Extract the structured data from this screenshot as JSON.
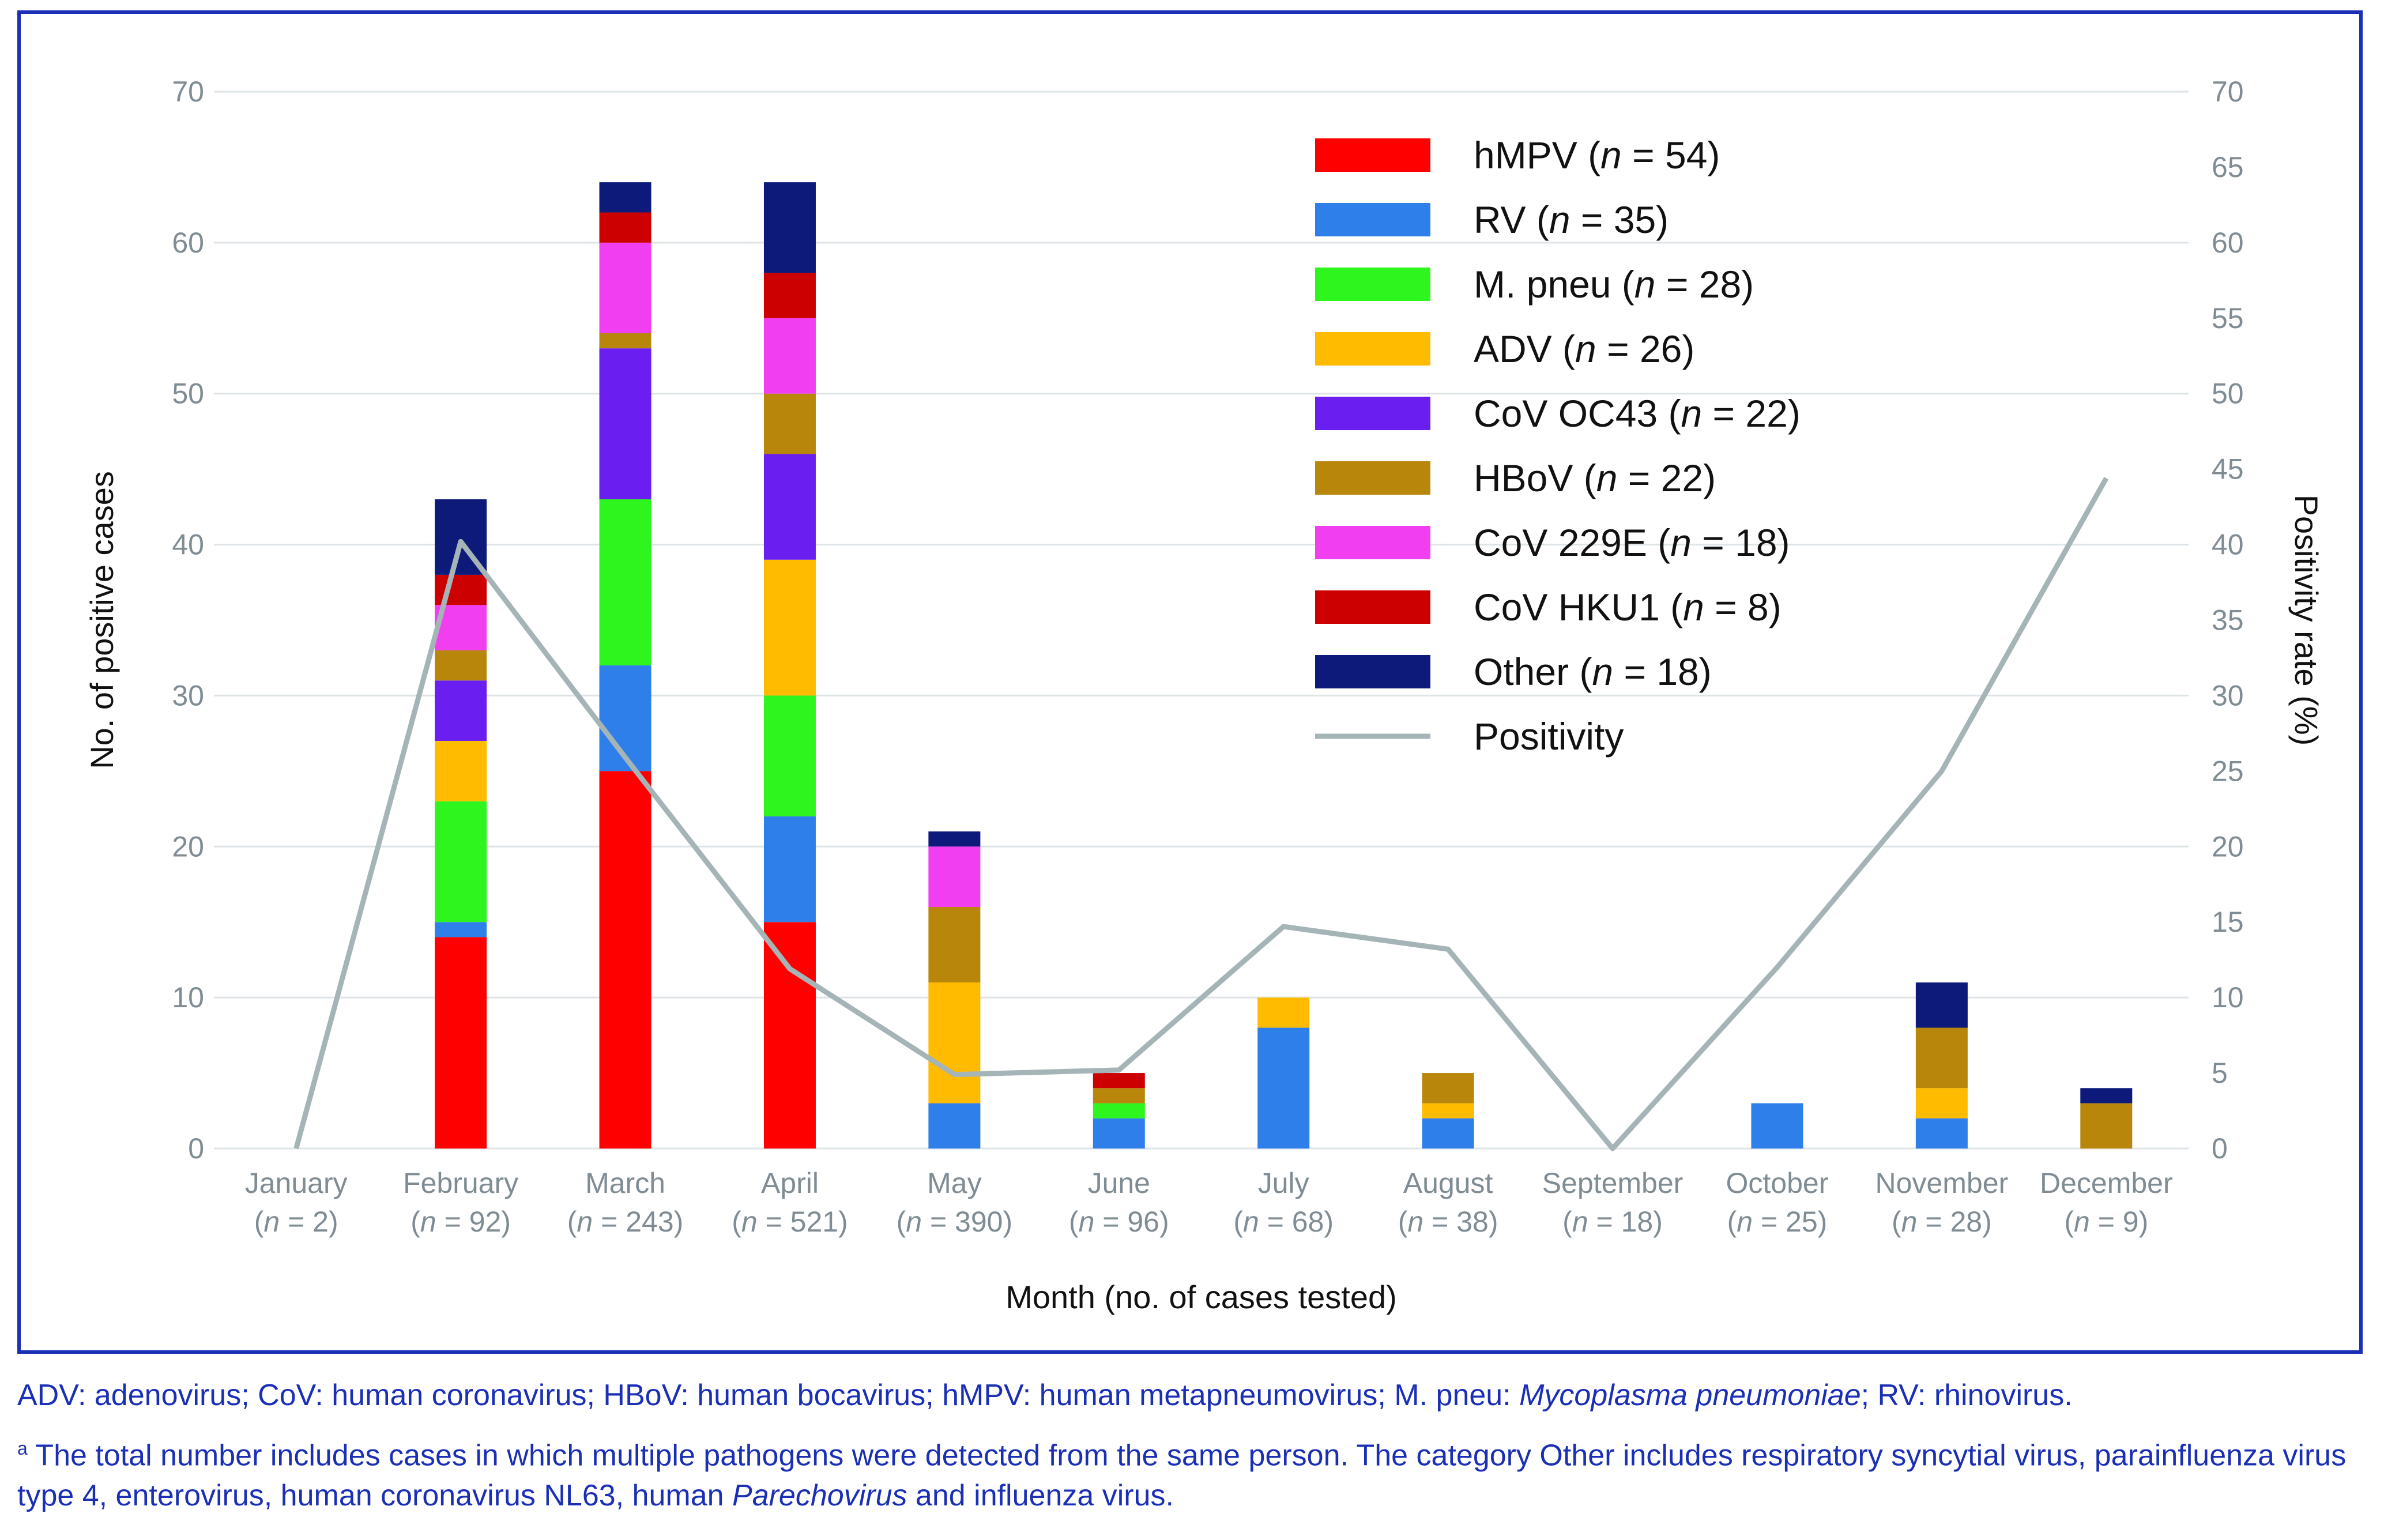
{
  "chart_data": {
    "type": "bar",
    "stacked": true,
    "xlabel": "Month (no. of cases tested)",
    "ylabel": "No. of positive cases",
    "y2label": "Positivity rate (%)",
    "ylim": [
      0,
      70
    ],
    "y2lim": [
      0,
      70
    ],
    "yticks": [
      0,
      10,
      20,
      30,
      40,
      50,
      60,
      70
    ],
    "y2ticks": [
      0,
      5,
      10,
      15,
      20,
      25,
      30,
      35,
      40,
      45,
      50,
      55,
      60,
      65,
      70
    ],
    "categories": [
      "January",
      "February",
      "March",
      "April",
      "May",
      "June",
      "July",
      "August",
      "September",
      "October",
      "November",
      "December"
    ],
    "category_counts": [
      "(n = 2)",
      "(n = 92)",
      "(n = 243)",
      "(n = 521)",
      "(n = 390)",
      "(n = 96)",
      "(n = 68)",
      "(n = 38)",
      "(n = 18)",
      "(n = 25)",
      "(n = 28)",
      "(n = 9)"
    ],
    "series": [
      {
        "name": "hMPV",
        "n": "54",
        "color": "#ff0000",
        "values": [
          0,
          14,
          25,
          15,
          0,
          0,
          0,
          0,
          0,
          0,
          0,
          0
        ]
      },
      {
        "name": "RV",
        "n": "35",
        "color": "#2f7fea",
        "values": [
          0,
          1,
          7,
          7,
          3,
          2,
          8,
          2,
          0,
          3,
          2,
          0
        ]
      },
      {
        "name": "M. pneu",
        "n": "28",
        "color": "#2ff51f",
        "values": [
          0,
          8,
          11,
          8,
          0,
          1,
          0,
          0,
          0,
          0,
          0,
          0
        ]
      },
      {
        "name": "ADV",
        "n": "26",
        "color": "#ffbb00",
        "values": [
          0,
          4,
          0,
          9,
          8,
          0,
          2,
          1,
          0,
          0,
          2,
          0
        ]
      },
      {
        "name": "CoV OC43",
        "n": "22",
        "color": "#6a1ff0",
        "values": [
          0,
          4,
          10,
          7,
          0,
          0,
          0,
          0,
          0,
          0,
          0,
          0
        ]
      },
      {
        "name": "HBoV",
        "n": "22",
        "color": "#b8860b",
        "values": [
          0,
          2,
          1,
          4,
          5,
          1,
          0,
          2,
          0,
          0,
          4,
          3
        ]
      },
      {
        "name": "CoV 229E",
        "n": "18",
        "color": "#f03ef0",
        "values": [
          0,
          3,
          6,
          5,
          4,
          0,
          0,
          0,
          0,
          0,
          0,
          0
        ]
      },
      {
        "name": "CoV HKU1",
        "n": "8",
        "color": "#cc0000",
        "values": [
          0,
          2,
          2,
          3,
          0,
          1,
          0,
          0,
          0,
          0,
          0,
          0
        ]
      },
      {
        "name": "Other",
        "n": "18",
        "color": "#0d1a7a",
        "values": [
          0,
          5,
          2,
          6,
          1,
          0,
          0,
          0,
          0,
          0,
          3,
          1
        ]
      }
    ],
    "line": {
      "name": "Positivity",
      "color": "#a5b4b6",
      "values": [
        0,
        40.2,
        25.9,
        11.9,
        4.9,
        5.2,
        14.7,
        13.2,
        0,
        12.0,
        25.0,
        44.4
      ]
    },
    "legend": [
      {
        "prefix": "hMPV (",
        "n": "54",
        "color": "#ff0000"
      },
      {
        "prefix": "RV (",
        "n": "35",
        "color": "#2f7fea"
      },
      {
        "prefix": "M. pneu (",
        "n": "28",
        "color": "#2ff51f"
      },
      {
        "prefix": "ADV (",
        "n": "26",
        "color": "#ffbb00"
      },
      {
        "prefix": "CoV OC43 (",
        "n": "22",
        "color": "#6a1ff0"
      },
      {
        "prefix": "HBoV (",
        "n": "22",
        "color": "#b8860b"
      },
      {
        "prefix": "CoV 229E (",
        "n": "18",
        "color": "#f03ef0"
      },
      {
        "prefix": "CoV HKU1 (",
        "n": "8",
        "color": "#cc0000"
      },
      {
        "prefix": "Other (",
        "n": "18",
        "color": "#0d1a7a"
      },
      {
        "prefix": "Positivity",
        "n": "",
        "color": "#a5b4b6",
        "line": true
      }
    ],
    "legend_placement": "top-right",
    "grid": true
  },
  "footnotes": {
    "abbrev_part1": "ADV: adenovirus; CoV: human coronavirus; HBoV: human bocavirus; hMPV: human metapneumovirus; M. pneu: ",
    "abbrev_italic": "Mycoplasma pneumoniae",
    "abbrev_part2": "; RV: rhinovirus.",
    "note_marker": "a",
    "note_part1": " The total number includes cases in which multiple pathogens were detected from the same person. The category Other includes respiratory syncytial virus, parainfluenza virus type 4, enterovirus, human coronavirus NL63, human ",
    "note_italic": "Parechovirus",
    "note_part2": " and influenza virus."
  },
  "colors": {
    "frame": "#1a2fb5",
    "axis_text": "#7f8c93",
    "grid": "#dde3e6",
    "label_text": "#111111"
  }
}
